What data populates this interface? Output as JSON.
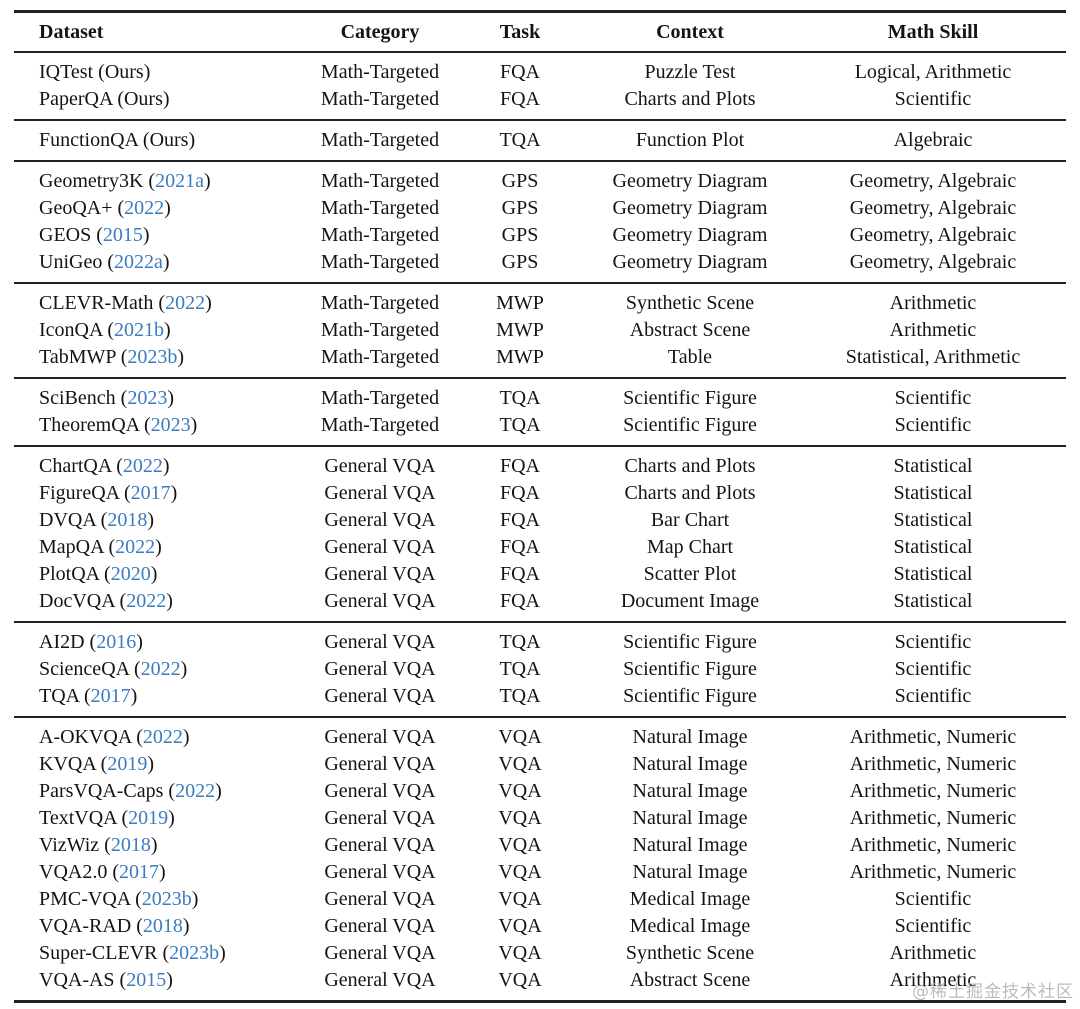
{
  "table": {
    "columns": [
      {
        "label": "Dataset",
        "align": "left"
      },
      {
        "label": "Category",
        "align": "center"
      },
      {
        "label": "Task",
        "align": "center"
      },
      {
        "label": "Context",
        "align": "center"
      },
      {
        "label": "Math Skill",
        "align": "center"
      }
    ],
    "sections": [
      {
        "rows": [
          {
            "dataset": "IQTest",
            "cite": "Ours",
            "cite_is_link": false,
            "category": "Math-Targeted",
            "task": "FQA",
            "context": "Puzzle Test",
            "skill": "Logical, Arithmetic"
          },
          {
            "dataset": "PaperQA",
            "cite": "Ours",
            "cite_is_link": false,
            "category": "Math-Targeted",
            "task": "FQA",
            "context": "Charts and Plots",
            "skill": "Scientific"
          }
        ]
      },
      {
        "rows": [
          {
            "dataset": "FunctionQA",
            "cite": "Ours",
            "cite_is_link": false,
            "category": "Math-Targeted",
            "task": "TQA",
            "context": "Function Plot",
            "skill": "Algebraic"
          }
        ]
      },
      {
        "rows": [
          {
            "dataset": "Geometry3K",
            "cite": "2021a",
            "cite_is_link": true,
            "category": "Math-Targeted",
            "task": "GPS",
            "context": "Geometry Diagram",
            "skill": "Geometry, Algebraic"
          },
          {
            "dataset": "GeoQA+",
            "cite": "2022",
            "cite_is_link": true,
            "category": "Math-Targeted",
            "task": "GPS",
            "context": "Geometry Diagram",
            "skill": "Geometry, Algebraic"
          },
          {
            "dataset": "GEOS",
            "cite": "2015",
            "cite_is_link": true,
            "category": "Math-Targeted",
            "task": "GPS",
            "context": "Geometry Diagram",
            "skill": "Geometry, Algebraic"
          },
          {
            "dataset": "UniGeo",
            "cite": "2022a",
            "cite_is_link": true,
            "category": "Math-Targeted",
            "task": "GPS",
            "context": "Geometry Diagram",
            "skill": "Geometry, Algebraic"
          }
        ]
      },
      {
        "rows": [
          {
            "dataset": "CLEVR-Math",
            "cite": "2022",
            "cite_is_link": true,
            "category": "Math-Targeted",
            "task": "MWP",
            "context": "Synthetic Scene",
            "skill": "Arithmetic"
          },
          {
            "dataset": "IconQA",
            "cite": "2021b",
            "cite_is_link": true,
            "category": "Math-Targeted",
            "task": "MWP",
            "context": "Abstract Scene",
            "skill": "Arithmetic"
          },
          {
            "dataset": "TabMWP",
            "cite": "2023b",
            "cite_is_link": true,
            "category": "Math-Targeted",
            "task": "MWP",
            "context": "Table",
            "skill": "Statistical, Arithmetic"
          }
        ]
      },
      {
        "rows": [
          {
            "dataset": "SciBench",
            "cite": "2023",
            "cite_is_link": true,
            "category": "Math-Targeted",
            "task": "TQA",
            "context": "Scientific Figure",
            "skill": "Scientific"
          },
          {
            "dataset": "TheoremQA",
            "cite": "2023",
            "cite_is_link": true,
            "category": "Math-Targeted",
            "task": "TQA",
            "context": "Scientific Figure",
            "skill": "Scientific"
          }
        ]
      },
      {
        "rows": [
          {
            "dataset": "ChartQA",
            "cite": "2022",
            "cite_is_link": true,
            "category": "General VQA",
            "task": "FQA",
            "context": "Charts and Plots",
            "skill": "Statistical"
          },
          {
            "dataset": "FigureQA",
            "cite": "2017",
            "cite_is_link": true,
            "category": "General VQA",
            "task": "FQA",
            "context": "Charts and Plots",
            "skill": "Statistical"
          },
          {
            "dataset": "DVQA",
            "cite": "2018",
            "cite_is_link": true,
            "category": "General VQA",
            "task": "FQA",
            "context": "Bar Chart",
            "skill": "Statistical"
          },
          {
            "dataset": "MapQA",
            "cite": "2022",
            "cite_is_link": true,
            "category": "General VQA",
            "task": "FQA",
            "context": "Map Chart",
            "skill": "Statistical"
          },
          {
            "dataset": "PlotQA",
            "cite": "2020",
            "cite_is_link": true,
            "category": "General VQA",
            "task": "FQA",
            "context": "Scatter Plot",
            "skill": "Statistical"
          },
          {
            "dataset": "DocVQA",
            "cite": "2022",
            "cite_is_link": true,
            "category": "General VQA",
            "task": "FQA",
            "context": "Document Image",
            "skill": "Statistical"
          }
        ]
      },
      {
        "rows": [
          {
            "dataset": "AI2D",
            "cite": "2016",
            "cite_is_link": true,
            "category": "General VQA",
            "task": "TQA",
            "context": "Scientific Figure",
            "skill": "Scientific"
          },
          {
            "dataset": "ScienceQA",
            "cite": "2022",
            "cite_is_link": true,
            "category": "General VQA",
            "task": "TQA",
            "context": "Scientific Figure",
            "skill": "Scientific"
          },
          {
            "dataset": "TQA",
            "cite": "2017",
            "cite_is_link": true,
            "category": "General VQA",
            "task": "TQA",
            "context": "Scientific Figure",
            "skill": "Scientific"
          }
        ]
      },
      {
        "rows": [
          {
            "dataset": "A-OKVQA",
            "cite": "2022",
            "cite_is_link": true,
            "category": "General VQA",
            "task": "VQA",
            "context": "Natural Image",
            "skill": "Arithmetic, Numeric"
          },
          {
            "dataset": "KVQA",
            "cite": "2019",
            "cite_is_link": true,
            "category": "General VQA",
            "task": "VQA",
            "context": "Natural Image",
            "skill": "Arithmetic, Numeric"
          },
          {
            "dataset": "ParsVQA-Caps",
            "cite": "2022",
            "cite_is_link": true,
            "category": "General VQA",
            "task": "VQA",
            "context": "Natural Image",
            "skill": "Arithmetic, Numeric"
          },
          {
            "dataset": "TextVQA",
            "cite": "2019",
            "cite_is_link": true,
            "category": "General VQA",
            "task": "VQA",
            "context": "Natural Image",
            "skill": "Arithmetic, Numeric"
          },
          {
            "dataset": "VizWiz",
            "cite": "2018",
            "cite_is_link": true,
            "category": "General VQA",
            "task": "VQA",
            "context": "Natural Image",
            "skill": "Arithmetic, Numeric"
          },
          {
            "dataset": "VQA2.0",
            "cite": "2017",
            "cite_is_link": true,
            "category": "General VQA",
            "task": "VQA",
            "context": "Natural Image",
            "skill": "Arithmetic, Numeric"
          },
          {
            "dataset": "PMC-VQA",
            "cite": "2023b",
            "cite_is_link": true,
            "category": "General VQA",
            "task": "VQA",
            "context": "Medical Image",
            "skill": "Scientific"
          },
          {
            "dataset": "VQA-RAD",
            "cite": "2018",
            "cite_is_link": true,
            "category": "General VQA",
            "task": "VQA",
            "context": "Medical Image",
            "skill": "Scientific"
          },
          {
            "dataset": "Super-CLEVR",
            "cite": "2023b",
            "cite_is_link": true,
            "category": "General VQA",
            "task": "VQA",
            "context": "Synthetic Scene",
            "skill": "Arithmetic"
          },
          {
            "dataset": "VQA-AS",
            "cite": "2015",
            "cite_is_link": true,
            "category": "General VQA",
            "task": "VQA",
            "context": "Abstract Scene",
            "skill": "Arithmetic"
          }
        ]
      }
    ]
  },
  "watermark": {
    "text": "@稀土掘金技术社区"
  },
  "colors": {
    "citation_link": "#3b7cbe",
    "text": "#141414",
    "rule": "#222222",
    "watermark": "#b0b0b0"
  }
}
